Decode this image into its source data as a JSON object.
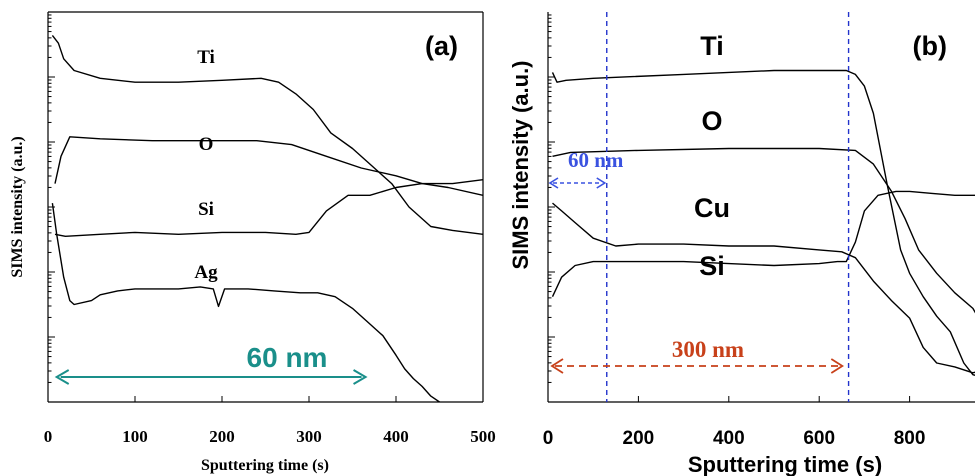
{
  "chart_data": [
    {
      "type": "line",
      "panel_label": "(a)",
      "xlabel": "Sputtering time (s)",
      "ylabel": "SIMS intensity (a.u.)",
      "xlim": [
        0,
        500
      ],
      "xticks": [
        0,
        100,
        200,
        300,
        400,
        500
      ],
      "y_scale": "log",
      "ylim": [
        0,
        10
      ],
      "y_tick_labels_shown": false,
      "grid": false,
      "annotations": [
        {
          "text": "60 nm",
          "color": "#1a8f8a",
          "arrow_from_x": 10,
          "arrow_to_x": 365
        }
      ],
      "series": [
        {
          "name": "Ti",
          "points": [
            [
              5,
              9.4
            ],
            [
              12,
              9.2
            ],
            [
              18,
              8.8
            ],
            [
              30,
              8.5
            ],
            [
              60,
              8.3
            ],
            [
              100,
              8.2
            ],
            [
              150,
              8.2
            ],
            [
              200,
              8.25
            ],
            [
              245,
              8.3
            ],
            [
              265,
              8.2
            ],
            [
              285,
              7.9
            ],
            [
              305,
              7.5
            ],
            [
              325,
              6.9
            ],
            [
              350,
              6.5
            ],
            [
              375,
              6.0
            ],
            [
              395,
              5.6
            ],
            [
              415,
              5.0
            ],
            [
              440,
              4.5
            ],
            [
              465,
              4.4
            ],
            [
              500,
              4.3
            ]
          ]
        },
        {
          "name": "O",
          "points": [
            [
              8,
              5.6
            ],
            [
              15,
              6.3
            ],
            [
              25,
              6.8
            ],
            [
              60,
              6.75
            ],
            [
              120,
              6.7
            ],
            [
              200,
              6.7
            ],
            [
              240,
              6.7
            ],
            [
              280,
              6.6
            ],
            [
              320,
              6.3
            ],
            [
              360,
              6.0
            ],
            [
              400,
              5.8
            ],
            [
              430,
              5.6
            ],
            [
              460,
              5.5
            ],
            [
              500,
              5.3
            ]
          ]
        },
        {
          "name": "Si",
          "points": [
            [
              8,
              4.3
            ],
            [
              20,
              4.25
            ],
            [
              60,
              4.3
            ],
            [
              100,
              4.35
            ],
            [
              150,
              4.3
            ],
            [
              200,
              4.35
            ],
            [
              250,
              4.35
            ],
            [
              285,
              4.3
            ],
            [
              300,
              4.35
            ],
            [
              320,
              4.9
            ],
            [
              345,
              5.3
            ],
            [
              370,
              5.3
            ],
            [
              400,
              5.5
            ],
            [
              430,
              5.6
            ],
            [
              465,
              5.6
            ],
            [
              500,
              5.7
            ]
          ]
        },
        {
          "name": "Ag",
          "points": [
            [
              5,
              5.1
            ],
            [
              10,
              4.3
            ],
            [
              18,
              3.2
            ],
            [
              25,
              2.6
            ],
            [
              30,
              2.5
            ],
            [
              50,
              2.6
            ],
            [
              60,
              2.75
            ],
            [
              80,
              2.85
            ],
            [
              100,
              2.9
            ],
            [
              120,
              2.9
            ],
            [
              150,
              2.9
            ],
            [
              175,
              2.95
            ],
            [
              190,
              2.9
            ],
            [
              196,
              2.45
            ],
            [
              203,
              2.9
            ],
            [
              230,
              2.9
            ],
            [
              260,
              2.85
            ],
            [
              290,
              2.8
            ],
            [
              310,
              2.8
            ],
            [
              330,
              2.7
            ],
            [
              350,
              2.4
            ],
            [
              370,
              2.0
            ],
            [
              385,
              1.7
            ],
            [
              400,
              1.2
            ],
            [
              410,
              0.85
            ],
            [
              420,
              0.6
            ],
            [
              430,
              0.4
            ],
            [
              440,
              0.15
            ],
            [
              450,
              0.0
            ]
          ]
        }
      ]
    },
    {
      "type": "line",
      "panel_label": "(b)",
      "xlabel": "Sputtering time (s)",
      "ylabel": "SIMS intensity (a.u.)",
      "xlim": [
        0,
        1000
      ],
      "xticks": [
        0,
        200,
        400,
        600,
        800
      ],
      "y_scale": "log",
      "ylim": [
        0,
        10
      ],
      "y_tick_labels_shown": false,
      "grid": false,
      "annotations": [
        {
          "text": "60 nm",
          "color": "#3a52e0",
          "arrow_from_x": 0,
          "arrow_to_x": 130
        },
        {
          "text": "300 nm",
          "color": "#c8411a",
          "arrow_from_x": 0,
          "arrow_to_x": 660
        },
        {
          "vertical_line_x": 130,
          "color": "#2233cc"
        },
        {
          "vertical_line_x": 665,
          "color": "#2233cc"
        }
      ],
      "series": [
        {
          "name": "Ti",
          "points": [
            [
              10,
              8.45
            ],
            [
              20,
              8.2
            ],
            [
              40,
              8.25
            ],
            [
              100,
              8.3
            ],
            [
              300,
              8.4
            ],
            [
              500,
              8.5
            ],
            [
              660,
              8.5
            ],
            [
              680,
              8.4
            ],
            [
              700,
              8.1
            ],
            [
              720,
              7.4
            ],
            [
              750,
              5.6
            ],
            [
              780,
              3.9
            ],
            [
              800,
              3.3
            ],
            [
              830,
              2.7
            ],
            [
              860,
              2.2
            ],
            [
              890,
              1.8
            ],
            [
              920,
              1.0
            ],
            [
              940,
              0.7
            ],
            [
              975,
              0.6
            ]
          ]
        },
        {
          "name": "O",
          "points": [
            [
              10,
              6.3
            ],
            [
              50,
              6.4
            ],
            [
              200,
              6.45
            ],
            [
              400,
              6.5
            ],
            [
              600,
              6.5
            ],
            [
              680,
              6.45
            ],
            [
              720,
              6.1
            ],
            [
              760,
              5.4
            ],
            [
              790,
              4.7
            ],
            [
              820,
              3.9
            ],
            [
              860,
              3.3
            ],
            [
              900,
              2.8
            ],
            [
              940,
              2.4
            ],
            [
              975,
              1.7
            ]
          ]
        },
        {
          "name": "Cu",
          "points": [
            [
              10,
              5.1
            ],
            [
              30,
              4.9
            ],
            [
              60,
              4.6
            ],
            [
              100,
              4.2
            ],
            [
              150,
              4.0
            ],
            [
              200,
              4.05
            ],
            [
              300,
              4.05
            ],
            [
              400,
              4.0
            ],
            [
              500,
              4.0
            ],
            [
              600,
              3.9
            ],
            [
              650,
              3.85
            ],
            [
              680,
              3.7
            ],
            [
              720,
              3.1
            ],
            [
              760,
              2.6
            ],
            [
              800,
              2.15
            ],
            [
              830,
              1.4
            ],
            [
              860,
              1.0
            ],
            [
              900,
              0.9
            ],
            [
              940,
              0.75
            ],
            [
              975,
              0.85
            ]
          ]
        },
        {
          "name": "Si",
          "points": [
            [
              10,
              2.7
            ],
            [
              30,
              3.2
            ],
            [
              60,
              3.5
            ],
            [
              100,
              3.6
            ],
            [
              200,
              3.6
            ],
            [
              300,
              3.6
            ],
            [
              400,
              3.55
            ],
            [
              500,
              3.5
            ],
            [
              600,
              3.55
            ],
            [
              640,
              3.6
            ],
            [
              660,
              3.6
            ],
            [
              680,
              4.1
            ],
            [
              700,
              4.9
            ],
            [
              730,
              5.3
            ],
            [
              770,
              5.4
            ],
            [
              800,
              5.4
            ],
            [
              850,
              5.35
            ],
            [
              900,
              5.3
            ],
            [
              975,
              5.3
            ]
          ]
        }
      ]
    }
  ]
}
